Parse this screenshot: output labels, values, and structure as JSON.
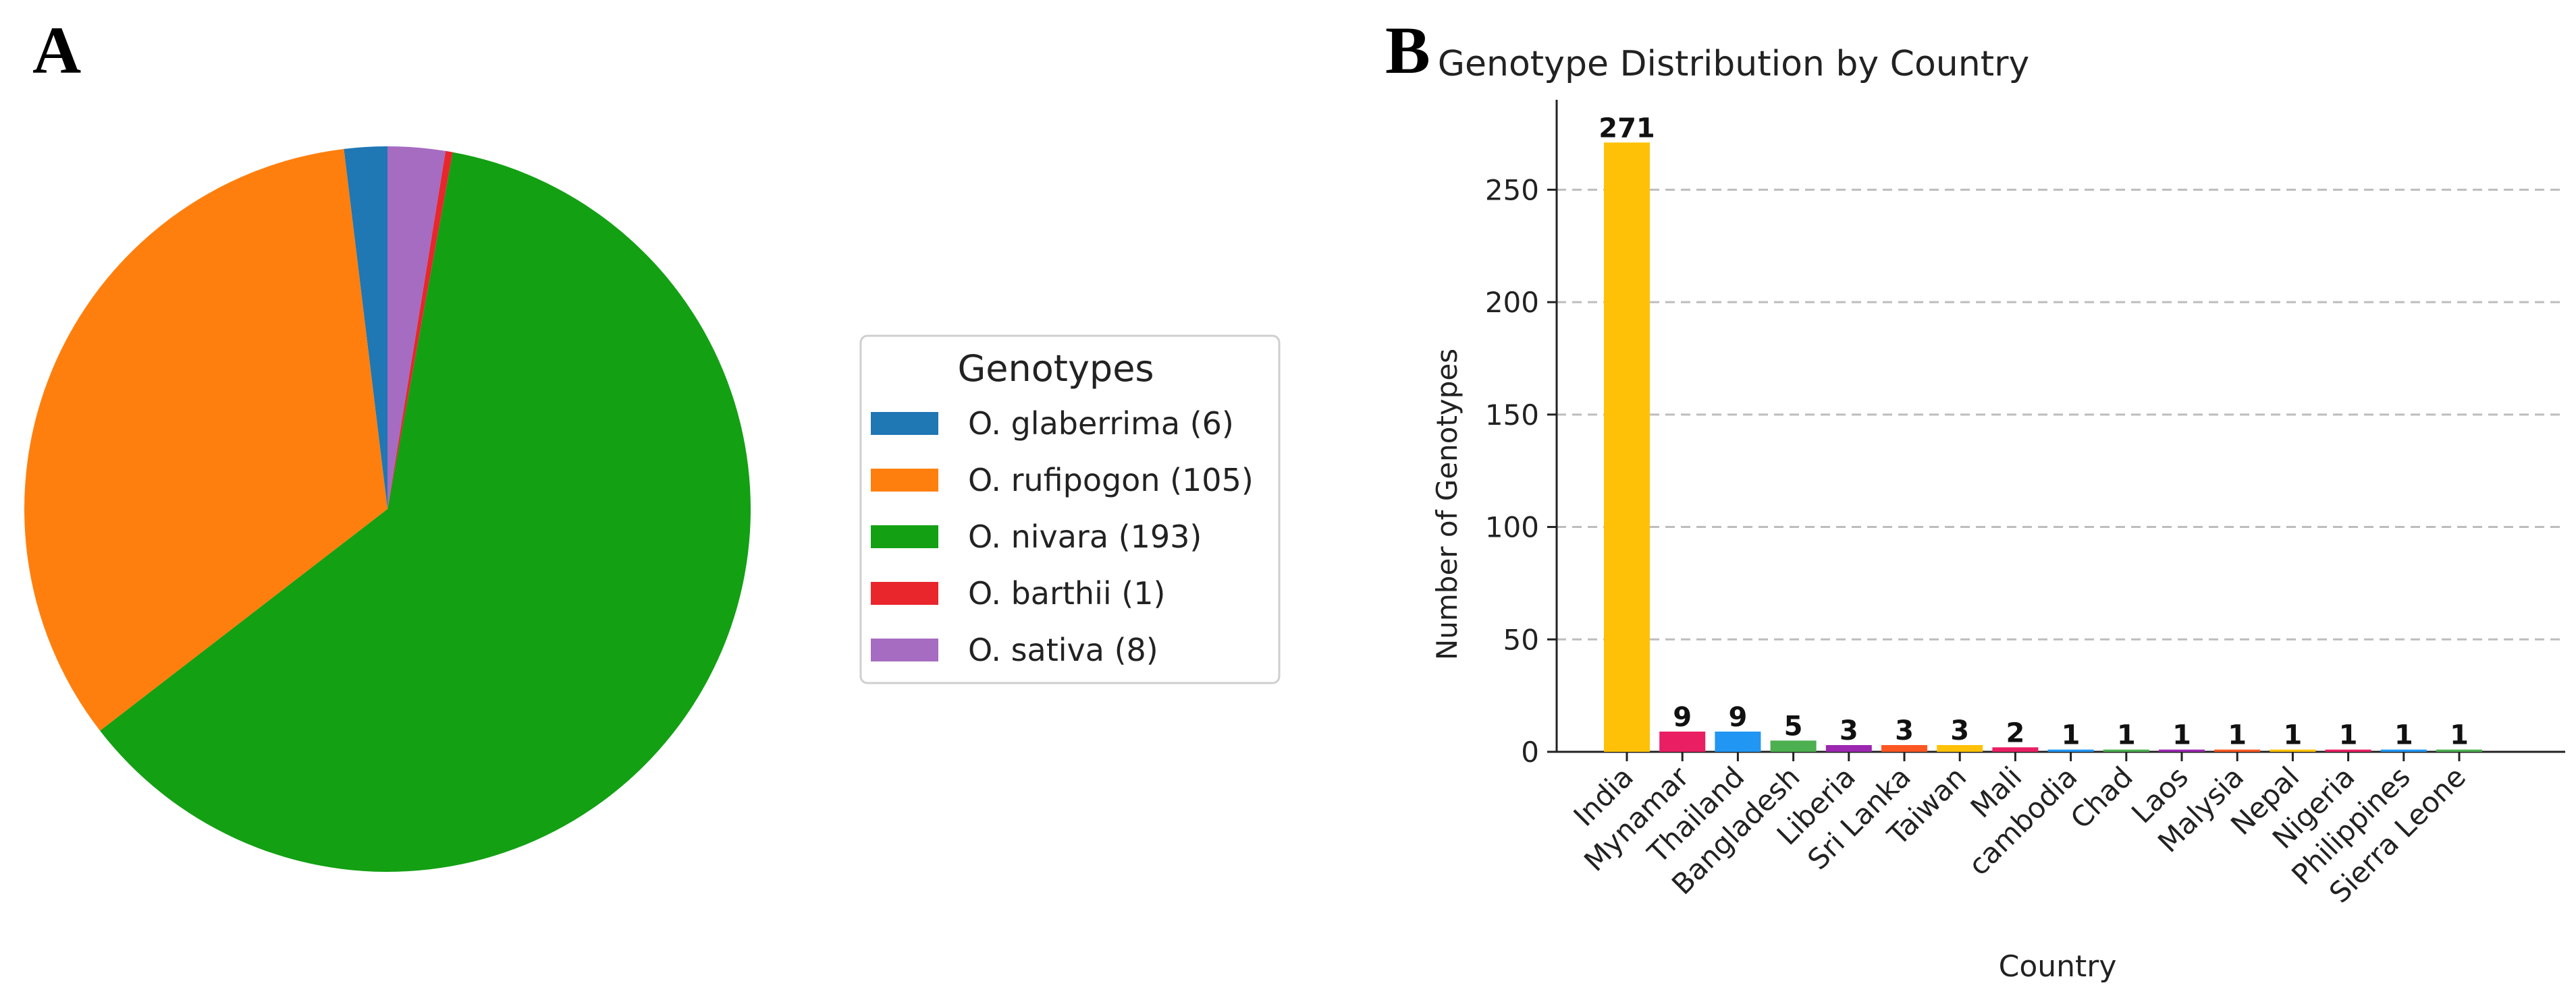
{
  "panels": {
    "a_label": "A",
    "b_label": "B"
  },
  "chart_data": [
    {
      "type": "pie",
      "title": "",
      "legend_title": "Genotypes",
      "legend_position": "right",
      "start_angle_deg": 90,
      "direction": "counterclockwise",
      "slices": [
        {
          "label": "O. glaberrima (6)",
          "value": 6,
          "color": "#1f77b4"
        },
        {
          "label": "O. rufipogon (105)",
          "value": 105,
          "color": "#ff7f0e"
        },
        {
          "label": "O. nivara (193)",
          "value": 193,
          "color": "#13a013"
        },
        {
          "label": "O. barthii (1)",
          "value": 1,
          "color": "#e8262c"
        },
        {
          "label": "O. sativa (8)",
          "value": 8,
          "color": "#a56cc1"
        }
      ]
    },
    {
      "type": "bar",
      "title": "Genotype Distribution by Country",
      "xlabel": "Country",
      "ylabel": "Number of Genotypes",
      "ylim": [
        0,
        290
      ],
      "yticks": [
        0,
        50,
        100,
        150,
        200,
        250
      ],
      "grid": "horizontal dashed",
      "categories": [
        "India",
        "Mynamar",
        "Thailand",
        "Bangladesh",
        "Liberia",
        "Sri Lanka",
        "Taiwan",
        "Mali",
        "cambodia",
        "Chad",
        "Laos",
        "Malysia",
        "Nepal",
        "Nigeria",
        "Philippines",
        "Sierra Leone"
      ],
      "values": [
        271,
        9,
        9,
        5,
        3,
        3,
        3,
        2,
        1,
        1,
        1,
        1,
        1,
        1,
        1,
        1
      ],
      "colors": [
        "#ffc107",
        "#e91e63",
        "#2196f3",
        "#4caf50",
        "#9c27b0",
        "#ff5722",
        "#ffc107",
        "#e91e63",
        "#2196f3",
        "#4caf50",
        "#9c27b0",
        "#ff5722",
        "#ffc107",
        "#e91e63",
        "#2196f3",
        "#4caf50"
      ]
    }
  ]
}
